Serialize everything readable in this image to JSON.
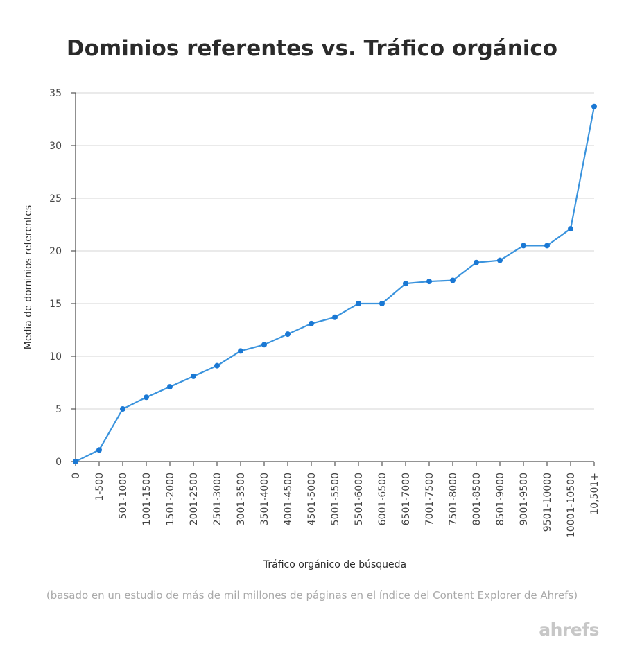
{
  "chart_data": {
    "type": "line",
    "title": "Dominios referentes vs. Tráfico orgánico",
    "xlabel": "Tráfico orgánico de búsqueda",
    "ylabel": "Media de dominios referentes",
    "categories": [
      "0",
      "1-500",
      "501-1000",
      "1001-1500",
      "1501-2000",
      "2001-2500",
      "2501-3000",
      "3001-3500",
      "3501-4000",
      "4001-4500",
      "4501-5000",
      "5001-5500",
      "5501-6000",
      "6001-6500",
      "6501-7000",
      "7001-7500",
      "7501-8000",
      "8001-8500",
      "8501-9000",
      "9001-9500",
      "9501-10000",
      "10001-10500",
      "10,501+"
    ],
    "series": [
      {
        "values": [
          0,
          1.1,
          5.0,
          6.1,
          7.1,
          8.1,
          9.1,
          10.5,
          11.1,
          12.1,
          13.1,
          13.7,
          15.0,
          15.0,
          16.9,
          17.1,
          17.2,
          18.9,
          19.1,
          20.5,
          20.5,
          22.1,
          33.7
        ]
      }
    ],
    "yticks": [
      0,
      5,
      10,
      15,
      20,
      25,
      30,
      35
    ],
    "ylim": [
      0,
      35
    ],
    "grid": true,
    "line_color": "#3a93dd",
    "point_color": "#1a78d4"
  },
  "footnote": "(basado en un estudio de más de mil millones de páginas en el índice del Content Explorer de Ahrefs)",
  "brand": "ahrefs"
}
